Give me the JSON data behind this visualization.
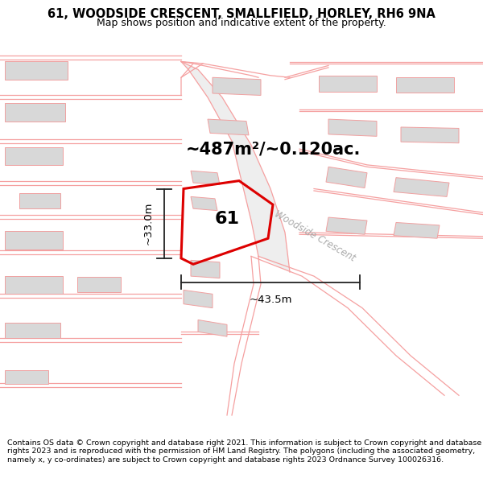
{
  "title": "61, WOODSIDE CRESCENT, SMALLFIELD, HORLEY, RH6 9NA",
  "subtitle": "Map shows position and indicative extent of the property.",
  "footer": "Contains OS data © Crown copyright and database right 2021. This information is subject to Crown copyright and database rights 2023 and is reproduced with the permission of HM Land Registry. The polygons (including the associated geometry, namely x, y co-ordinates) are subject to Crown copyright and database rights 2023 Ordnance Survey 100026316.",
  "area_label": "~487m²/~0.120ac.",
  "plot_number": "61",
  "dim_width": "~43.5m",
  "dim_height": "~33.0m",
  "road_label": "Woodside Crescent",
  "bg_color": "#ffffff",
  "plot_edge_color": "#dd0000",
  "plot_linewidth": 2.2,
  "road_line_color": "#f5a0a0",
  "road_line_color2": "#c8c8c8",
  "building_fill": "#d8d8d8",
  "building_edge": "#f0a0a0",
  "dim_line_color": "#222222",
  "road_label_color": "#aaaaaa",
  "title_fontsize": 10.5,
  "subtitle_fontsize": 9,
  "footer_fontsize": 6.8,
  "area_fontsize": 15,
  "plot_num_fontsize": 16,
  "dim_fontsize": 9.5,
  "road_label_fontsize": 8.5
}
